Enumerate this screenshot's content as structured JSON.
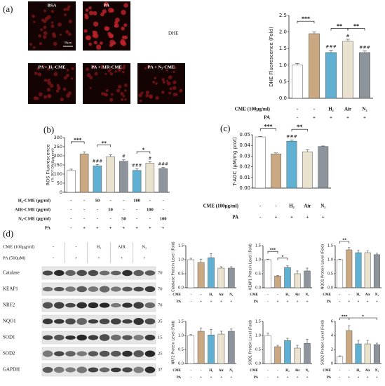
{
  "panels": [
    "(a)",
    "(b)",
    "(c)",
    "(d)"
  ],
  "images": {
    "labels": [
      "BSA",
      "PA",
      "PA + H₂-CME",
      "PA + AIR-CME",
      "PA + N₂-CME"
    ],
    "scale": "50μm",
    "stain": "DHE"
  },
  "blot": {
    "header": [
      {
        "label": "CME (100μg/ml)",
        "cells": [
          "-",
          "-",
          "H₂",
          "AIR",
          "N₂"
        ]
      },
      {
        "label": "PA (500μM)",
        "cells": [
          "-",
          "+",
          "+",
          "+",
          "+"
        ]
      }
    ],
    "rows": [
      {
        "name": "Catalase",
        "kda": "70"
      },
      {
        "name": "KEAP1",
        "kda": "70"
      },
      {
        "name": "NRF2",
        "kda": "70"
      },
      {
        "name": "NQO1",
        "kda": "35"
      },
      {
        "name": "SOD1",
        "kda": "15"
      },
      {
        "name": "SOD2",
        "kda": "25"
      },
      {
        "name": "GAPDH",
        "kda": "37"
      }
    ]
  },
  "chart_data": [
    {
      "type": "bar",
      "ylabel": "DHE Fluorescence (Fold)",
      "values": [
        1.0,
        1.95,
        1.38,
        1.72,
        1.38
      ],
      "errors": [
        0.05,
        0.05,
        0.07,
        0.06,
        0.05
      ],
      "colors": [
        "#ffffff",
        "#c9a882",
        "#5fb0d2",
        "#e8e2cf",
        "#8d949b"
      ],
      "ylim": [
        0,
        2.5
      ],
      "yticks": [
        {
          "value": 0,
          "label": "0.0"
        },
        0.5,
        {
          "value": 1,
          "label": "1.0"
        },
        1.5,
        {
          "value": 2,
          "label": "2.0"
        },
        2.5
      ],
      "conditions": [
        {
          "label": "CME (100μg/ml)",
          "values": [
            "-",
            "-",
            "H₂",
            "Air",
            "N₂"
          ]
        },
        {
          "label": "PA",
          "values": [
            "-",
            "+",
            "+",
            "+",
            "+"
          ]
        }
      ],
      "brackets": [
        {
          "from": 0,
          "to": 1,
          "text": "***"
        },
        {
          "from": 2,
          "to": 3,
          "text": "**"
        },
        {
          "from": 3,
          "to": 4,
          "text": "**"
        }
      ],
      "hashes": [
        {
          "bar": 2,
          "text": "###"
        },
        {
          "bar": 3,
          "text": "#"
        },
        {
          "bar": 4,
          "text": "###"
        }
      ]
    },
    {
      "type": "bar",
      "ylabel": "ROS Fluorescence",
      "ylabel2": "(% DCF-DA/Δμg prot)",
      "values": [
        120,
        210,
        145,
        195,
        170,
        120,
        160,
        130
      ],
      "errors": [
        7,
        12,
        7,
        10,
        8,
        8,
        8,
        7
      ],
      "colors": [
        "#ffffff",
        "#c9a882",
        "#5fb0d2",
        "#e8e2cf",
        "#8d949b",
        "#5fb0d2",
        "#e8e2cf",
        "#8d949b"
      ],
      "ylim": [
        0,
        300
      ],
      "yticks": [
        0,
        50,
        100,
        150,
        200,
        250,
        300
      ],
      "conditions": [
        {
          "label": "H₂-CME (μg/ml)",
          "values": [
            "-",
            "-",
            "50",
            "-",
            "-",
            "100",
            "-",
            "-"
          ]
        },
        {
          "label": "AIR-CME (μg/ml)",
          "values": [
            "-",
            "-",
            "-",
            "50",
            "-",
            "-",
            "100",
            "-"
          ]
        },
        {
          "label": "N₂-CME (μg/ml)",
          "values": [
            "-",
            "-",
            "-",
            "-",
            "50",
            "-",
            "-",
            "100"
          ]
        },
        {
          "label": "PA",
          "values": [
            "-",
            "+",
            "+",
            "+",
            "+",
            "+",
            "+",
            "+"
          ]
        }
      ],
      "brackets": [
        {
          "from": 0,
          "to": 1,
          "text": "***"
        },
        {
          "from": 2,
          "to": 3,
          "text": "**"
        },
        {
          "from": 5,
          "to": 6,
          "text": "*"
        }
      ],
      "hashes": [
        {
          "bar": 2,
          "text": "###"
        },
        {
          "bar": 4,
          "text": "#"
        },
        {
          "bar": 5,
          "text": "###"
        },
        {
          "bar": 6,
          "text": "#"
        },
        {
          "bar": 7,
          "text": "###"
        }
      ]
    },
    {
      "type": "bar",
      "ylabel": "T-AOC (μM/mg prot)",
      "values": [
        0.048,
        0.032,
        0.044,
        0.034,
        0.039
      ],
      "errors": [
        0.0005,
        0.001,
        0.001,
        0.002,
        0.0005
      ],
      "colors": [
        "#ffffff",
        "#c9a882",
        "#5fb0d2",
        "#e8e2cf",
        "#8d949b"
      ],
      "ylim": [
        0,
        0.05
      ],
      "yticks": [
        {
          "value": 0,
          "label": "0.00"
        },
        0.01,
        0.02,
        0.03,
        0.04,
        {
          "value": 0.05,
          "label": "0.05"
        }
      ],
      "conditions": [
        {
          "label": "CME (100μg/ml)",
          "values": [
            "-",
            "-",
            "H₂",
            "Air",
            "N₂"
          ]
        },
        {
          "label": "PA",
          "values": [
            "-",
            "+",
            "+",
            "+",
            "+"
          ]
        }
      ],
      "brackets": [
        {
          "from": 0,
          "to": 1,
          "text": "***"
        },
        {
          "from": 2,
          "to": 3,
          "text": "**"
        }
      ],
      "hashes": [
        {
          "bar": 2,
          "text": "###"
        }
      ]
    },
    {
      "type": "bar",
      "ylabel": "Catalase Protein Level (Fold)",
      "values": [
        1.0,
        0.9,
        1.07,
        0.7,
        0.7
      ],
      "errors": [
        0.05,
        0.12,
        0.15,
        0.05,
        0.05
      ],
      "colors": [
        "#ffffff",
        "#c9a882",
        "#5fb0d2",
        "#e8e2cf",
        "#8d949b"
      ],
      "ylim": [
        0,
        1.5
      ],
      "yticks": [
        {
          "value": 0,
          "label": "0.0"
        },
        0.5,
        {
          "value": 1,
          "label": "1.0"
        },
        1.5
      ],
      "conditions": [
        {
          "label": "CME",
          "values": [
            "-",
            "-",
            "H₂",
            "Air",
            "N₂"
          ]
        },
        {
          "label": "PA",
          "values": [
            "-",
            "+",
            "+",
            "+",
            "+"
          ]
        }
      ],
      "brackets": [],
      "hashes": []
    },
    {
      "type": "bar",
      "ylabel": "KEAP1 Protein Level (Fold)",
      "values": [
        1.0,
        0.42,
        0.72,
        0.5,
        0.6
      ],
      "errors": [
        0.02,
        0.02,
        0.06,
        0.1,
        0.1
      ],
      "colors": [
        "#ffffff",
        "#c9a882",
        "#5fb0d2",
        "#e8e2cf",
        "#8d949b"
      ],
      "ylim": [
        0,
        1.5
      ],
      "yticks": [
        {
          "value": 0,
          "label": "0.0"
        },
        0.5,
        {
          "value": 1,
          "label": "1.0"
        },
        1.5
      ],
      "conditions": [
        {
          "label": "CME",
          "values": [
            "-",
            "-",
            "H₂",
            "Air",
            "N₂"
          ]
        },
        {
          "label": "PA",
          "values": [
            "-",
            "+",
            "+",
            "+",
            "+"
          ]
        }
      ],
      "brackets": [
        {
          "from": 0,
          "to": 1,
          "text": "***"
        },
        {
          "from": 1,
          "to": 2,
          "text": "*"
        }
      ],
      "hashes": []
    },
    {
      "type": "bar",
      "ylabel": "NQO1 Protein Level (Fold)",
      "values": [
        1.0,
        1.35,
        1.25,
        1.25,
        1.18
      ],
      "errors": [
        0.02,
        0.08,
        0.08,
        0.06,
        0.05
      ],
      "colors": [
        "#ffffff",
        "#c9a882",
        "#5fb0d2",
        "#e8e2cf",
        "#8d949b"
      ],
      "ylim": [
        0,
        1.5
      ],
      "yticks": [
        {
          "value": 0,
          "label": "0.0"
        },
        0.5,
        {
          "value": 1,
          "label": "1.0"
        },
        1.5
      ],
      "conditions": [
        {
          "label": "CME",
          "values": [
            "-",
            "-",
            "H₂",
            "Air",
            "N₂"
          ]
        },
        {
          "label": "PA",
          "values": [
            "-",
            "+",
            "+",
            "+",
            "+"
          ]
        }
      ],
      "brackets": [
        {
          "from": 0,
          "to": 1,
          "text": "**"
        }
      ],
      "hashes": []
    },
    {
      "type": "bar",
      "ylabel": "NRF2 Protein Level (Fold)",
      "values": [
        1.0,
        1.15,
        1.02,
        1.05,
        1.15
      ],
      "errors": [
        0.03,
        0.12,
        0.2,
        0.1,
        0.08
      ],
      "colors": [
        "#ffffff",
        "#c9a882",
        "#5fb0d2",
        "#e8e2cf",
        "#8d949b"
      ],
      "ylim": [
        0,
        1.5
      ],
      "yticks": [
        {
          "value": 0,
          "label": "0.0"
        },
        0.5,
        {
          "value": 1,
          "label": "1.0"
        },
        1.5
      ],
      "conditions": [
        {
          "label": "CME",
          "values": [
            "-",
            "-",
            "H₂",
            "Air",
            "N₂"
          ]
        },
        {
          "label": "PA",
          "values": [
            "-",
            "+",
            "+",
            "+",
            "+"
          ]
        }
      ],
      "brackets": [],
      "hashes": []
    },
    {
      "type": "bar",
      "ylabel": "SOD1 Protein Level (Fold)",
      "values": [
        1.0,
        0.6,
        0.82,
        0.55,
        0.72
      ],
      "errors": [
        0.08,
        0.05,
        0.08,
        0.1,
        0.15
      ],
      "colors": [
        "#ffffff",
        "#c9a882",
        "#5fb0d2",
        "#e8e2cf",
        "#8d949b"
      ],
      "ylim": [
        0,
        1.5
      ],
      "yticks": [
        {
          "value": 0,
          "label": "0.0"
        },
        0.5,
        {
          "value": 1,
          "label": "1.0"
        },
        1.5
      ],
      "conditions": [
        {
          "label": "CME",
          "values": [
            "-",
            "-",
            "H₂",
            "Air",
            "N₂"
          ]
        },
        {
          "label": "PA",
          "values": [
            "-",
            "+",
            "+",
            "+",
            "+"
          ]
        }
      ],
      "brackets": [],
      "hashes": []
    },
    {
      "type": "bar",
      "ylabel": "SOD2 Protein Level (Fold)",
      "values": [
        1.0,
        4.7,
        2.8,
        2.8,
        2.7
      ],
      "errors": [
        0.1,
        0.7,
        0.5,
        0.5,
        0.2
      ],
      "colors": [
        "#ffffff",
        "#c9a882",
        "#5fb0d2",
        "#e8e2cf",
        "#8d949b"
      ],
      "ylim": [
        0,
        6
      ],
      "yticks": [
        0,
        2,
        4,
        6
      ],
      "conditions": [
        {
          "label": "CME",
          "values": [
            "-",
            "-",
            "H₂",
            "Air",
            "N₂"
          ]
        },
        {
          "label": "PA",
          "values": [
            "-",
            "+",
            "+",
            "+",
            "+"
          ]
        }
      ],
      "brackets": [
        {
          "from": 0,
          "to": 1,
          "text": "***"
        },
        {
          "from": 1,
          "to": 4,
          "text": "*"
        }
      ],
      "hashes": []
    }
  ]
}
